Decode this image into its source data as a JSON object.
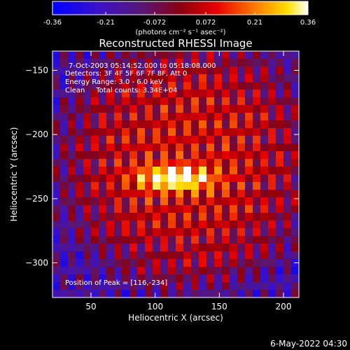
{
  "chart_data": {
    "type": "heatmap",
    "title": "Reconstructed RHESSI Image",
    "xlabel": "Heliocentric X (arcsec)",
    "ylabel": "Heliocentric Y (arcsec)",
    "xlim": [
      20,
      212
    ],
    "ylim": [
      -327,
      -135
    ],
    "x_ticks": [
      50,
      100,
      150,
      200
    ],
    "y_ticks": [
      -150,
      -200,
      -250,
      -300
    ],
    "colorbar": {
      "range": [
        -0.36,
        0.36
      ],
      "ticks": [
        "-0.36",
        "-0.21",
        "-0.072",
        "0.072",
        "0.21",
        "0.36"
      ],
      "units": "(photons cm⁻² s⁻¹ asec⁻²)"
    },
    "annotations": [
      "7-Oct-2003 05:14:52.000 to 05:18:08.000",
      "Detectors: 3F 4F 5F 6F 7F 8F, Att 0",
      "Energy Range: 3.0 - 6.0 keV",
      "Clean     Total counts: 3.34E+04"
    ],
    "peak": {
      "label": "Position of Peak = [116,-234]",
      "x": 116,
      "y": -234,
      "value": 0.36
    },
    "source_extent": {
      "x_range": [
        85,
        150
      ],
      "y_range": [
        -245,
        -222
      ]
    },
    "background_pattern": "diagonal red/dark stripes (clean residual)",
    "colormap": "blue-purple-red-orange-yellow-white"
  },
  "footer": {
    "timestamp": "6-May-2022 04:30"
  }
}
